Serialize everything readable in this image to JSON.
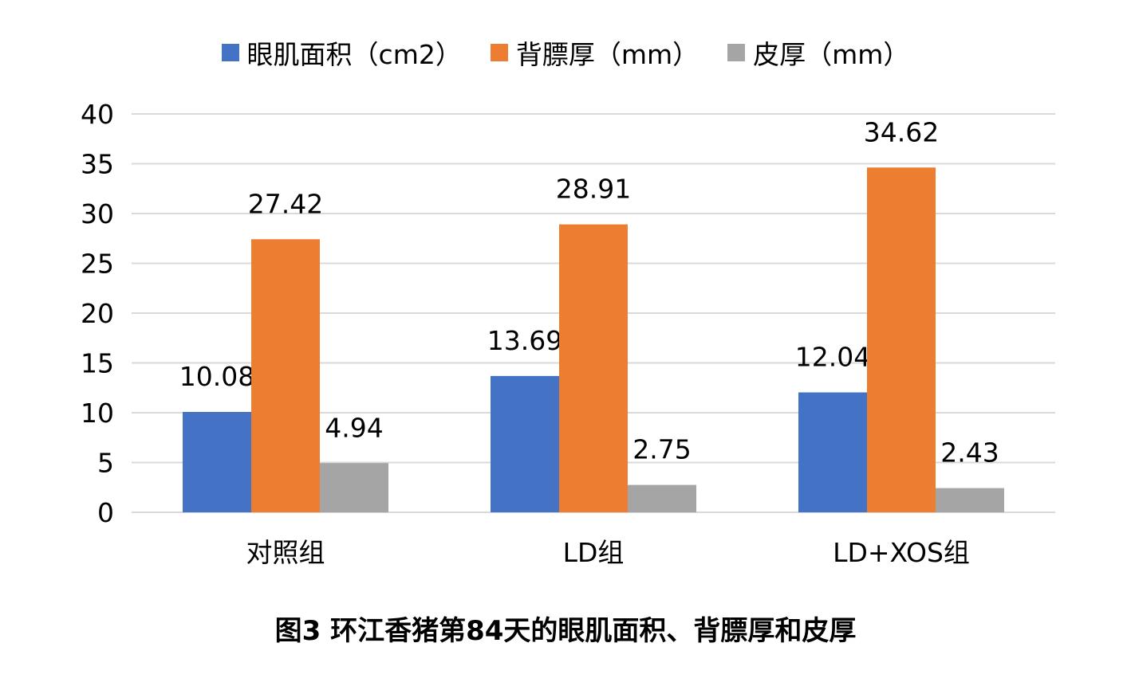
{
  "chart_data": {
    "type": "bar",
    "categories": [
      "对照组",
      "LD组",
      "LD+XOS组"
    ],
    "series": [
      {
        "name": "眼肌面积（cm2）",
        "color": "#4472C4",
        "values": [
          10.08,
          13.69,
          12.04
        ]
      },
      {
        "name": "背膘厚（mm）",
        "color": "#ED7D31",
        "values": [
          27.42,
          28.91,
          34.62
        ]
      },
      {
        "name": "皮厚（mm）",
        "color": "#A5A5A5",
        "values": [
          4.94,
          2.75,
          2.43
        ]
      }
    ],
    "ylim": [
      0,
      40
    ],
    "yticks": [
      0,
      5,
      10,
      15,
      20,
      25,
      30,
      35,
      40
    ],
    "grid": true,
    "legend": "top-center",
    "data_labels": true
  },
  "caption": "图3 环江香猪第84天的眼肌面积、背膘厚和皮厚"
}
